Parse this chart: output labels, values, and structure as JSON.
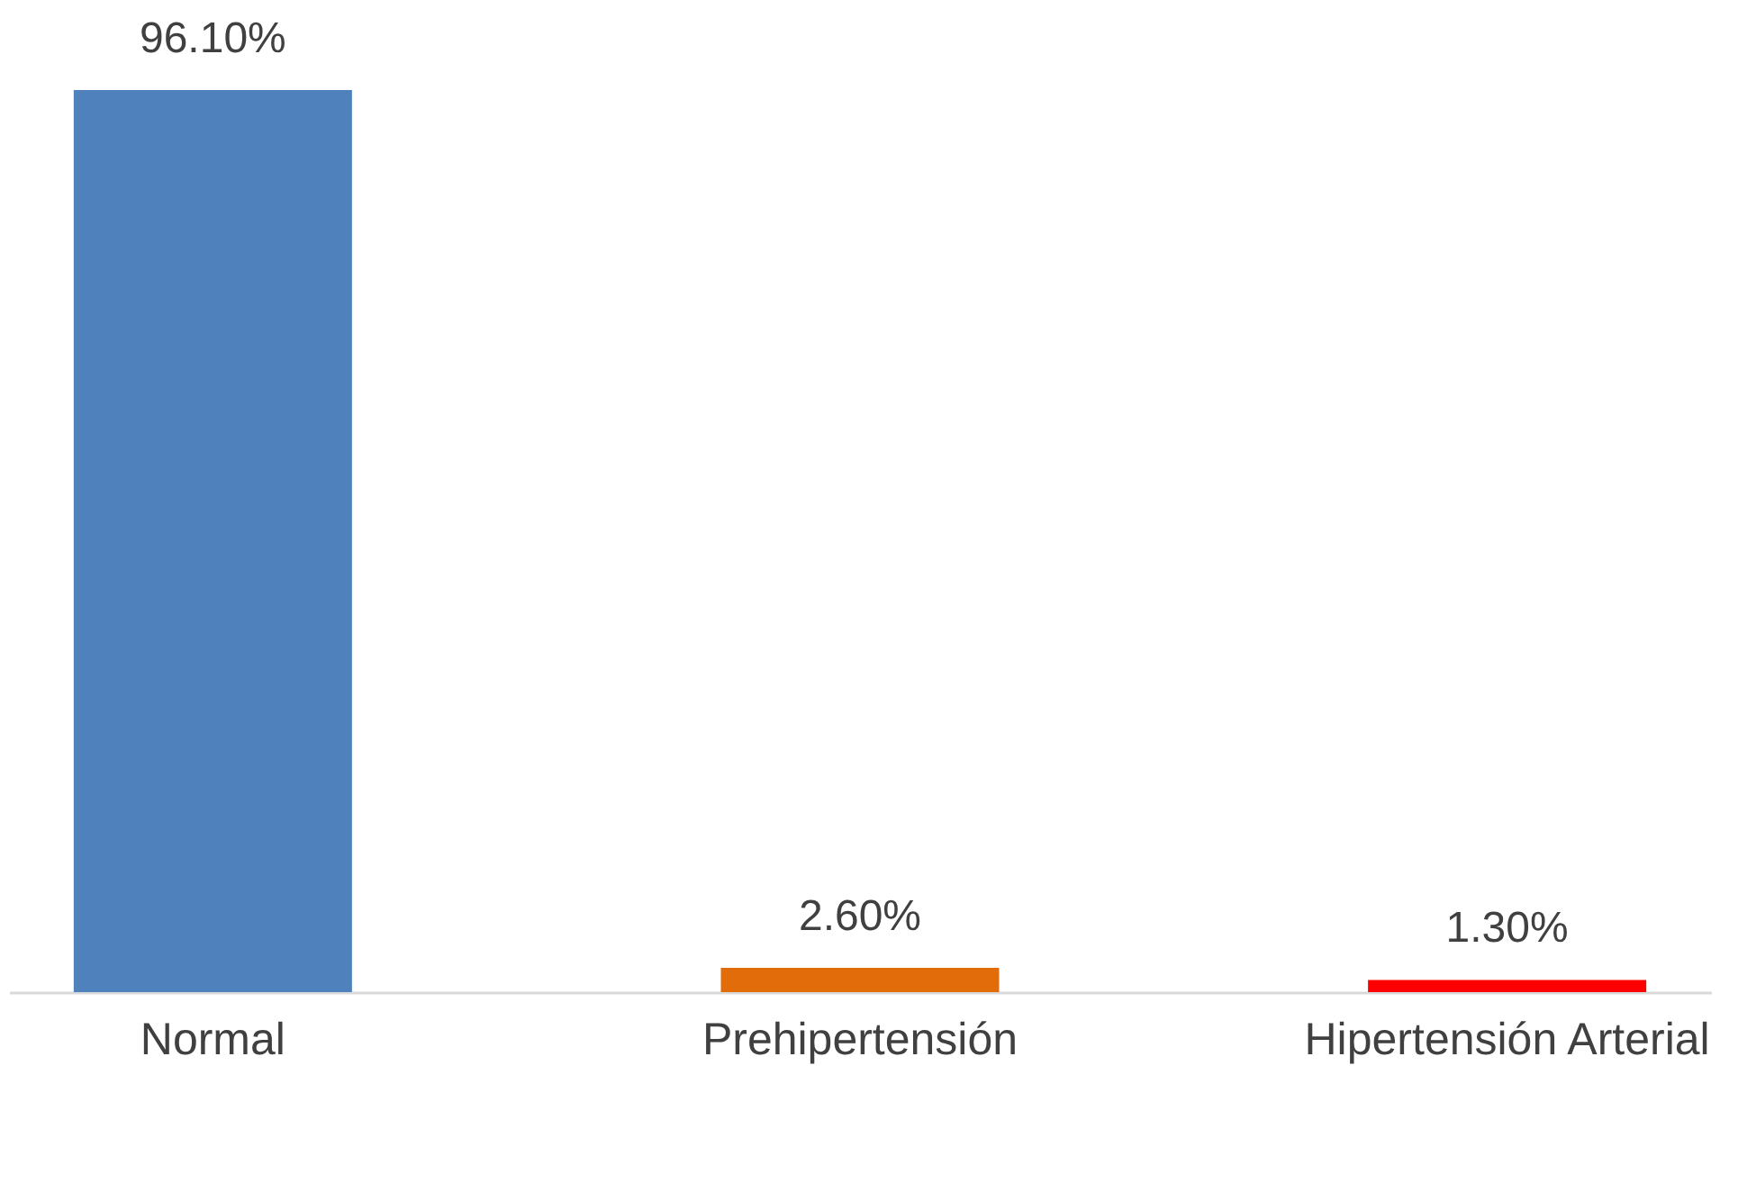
{
  "chart_data": {
    "type": "bar",
    "categories": [
      "Normal",
      "Prehipertensión",
      "Hipertensión Arterial"
    ],
    "values": [
      96.1,
      2.6,
      1.3
    ],
    "colors": [
      "#4f81bd",
      "#e36c0a",
      "#ff0000"
    ],
    "value_labels": [
      "96.10%",
      "2.60%",
      "1.30%"
    ],
    "grid": false,
    "legend": false
  }
}
